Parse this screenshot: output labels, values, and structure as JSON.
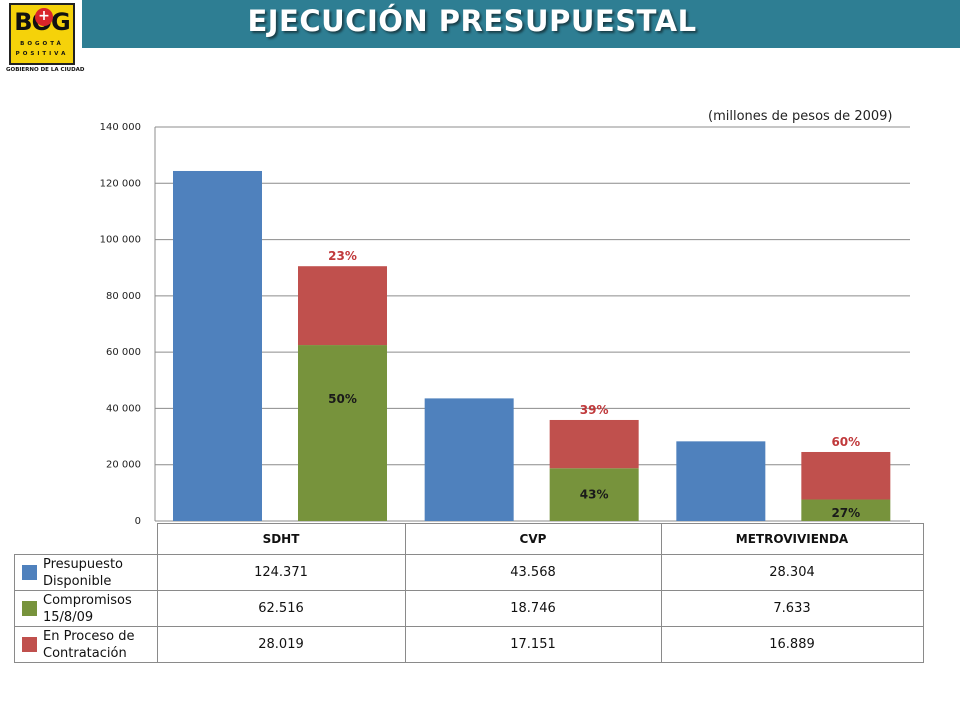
{
  "header": {
    "title": "EJECUCIÓN PRESUPUESTAL",
    "logo": {
      "word": "BOG",
      "sub1": "BOGOTÁ",
      "sub2": "POSITIVA",
      "foot": "GOBIERNO DE LA CIUDAD"
    },
    "title_bar_color": "#2e7e93"
  },
  "units_note": "(millones de pesos de 2009)",
  "colors": {
    "presupuesto": "#4f81bd",
    "compromisos": "#77933c",
    "proceso": "#c0504d",
    "pct_red": "#c0393b"
  },
  "chart_data": {
    "type": "bar",
    "categories": [
      "SDHT",
      "CVP",
      "METROVIVIENDA"
    ],
    "ylim": [
      0,
      140000
    ],
    "yticks": [
      0,
      20000,
      40000,
      60000,
      80000,
      100000,
      120000,
      140000
    ],
    "ytick_labels": [
      "0",
      "20 000",
      "40 000",
      "60 000",
      "80 000",
      "100 000",
      "120 000",
      "140 000"
    ],
    "grid": true,
    "series": [
      {
        "name": "Presupuesto Disponible",
        "values": [
          124371,
          43568,
          28304
        ],
        "stack": "a"
      },
      {
        "name": "Compromisos 15/8/09",
        "values": [
          62516,
          18746,
          7633
        ],
        "stack": "b"
      },
      {
        "name": "En Proceso de Contratación",
        "values": [
          28019,
          17151,
          16889
        ],
        "stack": "b"
      }
    ],
    "green_pct_labels": [
      "50%",
      "43%",
      "27%"
    ],
    "red_pct_labels": [
      "23%",
      "39%",
      "60%"
    ]
  },
  "table": {
    "headers": [
      "SDHT",
      "CVP",
      "METROVIVIENDA"
    ],
    "rows": [
      {
        "label": "Presupuesto Disponible",
        "values": [
          "124.371",
          "43.568",
          "28.304"
        ]
      },
      {
        "label": "Compromisos 15/8/09",
        "values": [
          "62.516",
          "18.746",
          "7.633"
        ]
      },
      {
        "label": "En Proceso de Contratación",
        "values": [
          "28.019",
          "17.151",
          "16.889"
        ]
      }
    ]
  }
}
